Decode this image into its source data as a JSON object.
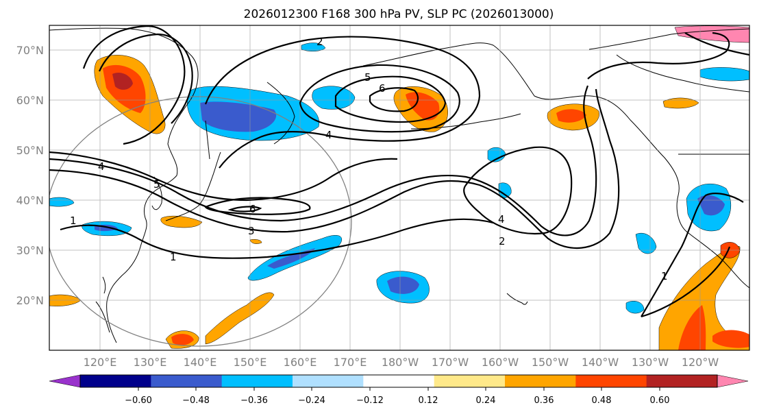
{
  "title": "2026012300 F168 300 hPa PV, SLP PC (2026013000)",
  "map": {
    "projection": "PlateCarree",
    "lon_range": [
      110,
      250
    ],
    "lat_range": [
      10,
      75
    ],
    "lat_ticks": [
      {
        "value": 20,
        "label": "20°N"
      },
      {
        "value": 30,
        "label": "30°N"
      },
      {
        "value": 40,
        "label": "40°N"
      },
      {
        "value": 50,
        "label": "50°N"
      },
      {
        "value": 60,
        "label": "60°N"
      },
      {
        "value": 70,
        "label": "70°N"
      }
    ],
    "lon_ticks": [
      {
        "value": 120,
        "label": "120°E"
      },
      {
        "value": 130,
        "label": "130°E"
      },
      {
        "value": 140,
        "label": "140°E"
      },
      {
        "value": 150,
        "label": "150°E"
      },
      {
        "value": 160,
        "label": "160°E"
      },
      {
        "value": 170,
        "label": "170°E"
      },
      {
        "value": 180,
        "label": "180°W"
      },
      {
        "value": 190,
        "label": "170°W"
      },
      {
        "value": 200,
        "label": "160°W"
      },
      {
        "value": 210,
        "label": "150°W"
      },
      {
        "value": 220,
        "label": "140°W"
      },
      {
        "value": 230,
        "label": "130°W"
      },
      {
        "value": 240,
        "label": "120°W"
      }
    ]
  },
  "colorbar": {
    "extend": "both",
    "bounds": [
      -0.6,
      -0.48,
      -0.36,
      -0.24,
      -0.12,
      0.12,
      0.24,
      0.36,
      0.48,
      0.6
    ],
    "labels": [
      "−0.60",
      "−0.48",
      "−0.36",
      "−0.24",
      "−0.12",
      "0.12",
      "0.24",
      "0.36",
      "0.48",
      "0.60"
    ],
    "colors": {
      "under": "#9932cc",
      "bins": [
        "#00008b",
        "#3a5bcd",
        "#00bfff",
        "#b0e0ff",
        "#ffffff",
        "#ffe98a",
        "#ffa500",
        "#ff4500",
        "#b22222"
      ],
      "over": "#ff86b0"
    }
  },
  "contours": [
    {
      "label": "1"
    },
    {
      "label": "1"
    },
    {
      "label": "1"
    },
    {
      "label": "2"
    },
    {
      "label": "2"
    },
    {
      "label": "3"
    },
    {
      "label": "4"
    },
    {
      "label": "4"
    },
    {
      "label": "4"
    },
    {
      "label": "5"
    },
    {
      "label": "5"
    },
    {
      "label": "6"
    },
    {
      "label": "6"
    }
  ]
}
